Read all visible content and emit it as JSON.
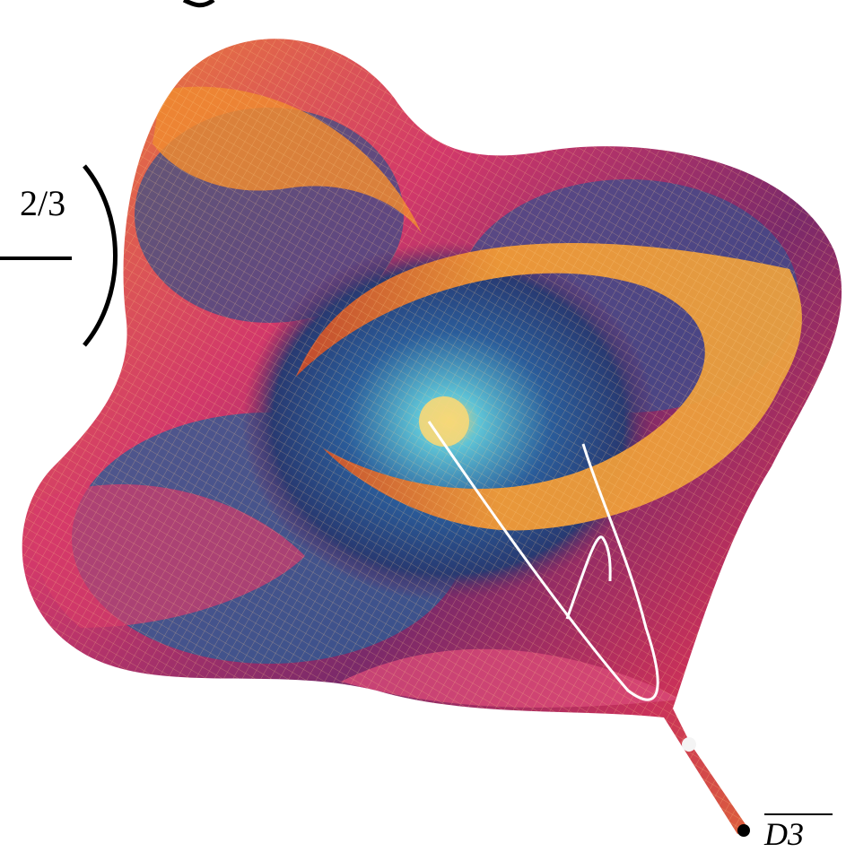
{
  "formula": {
    "exponent": "2/3"
  },
  "point_label": "D3"
}
